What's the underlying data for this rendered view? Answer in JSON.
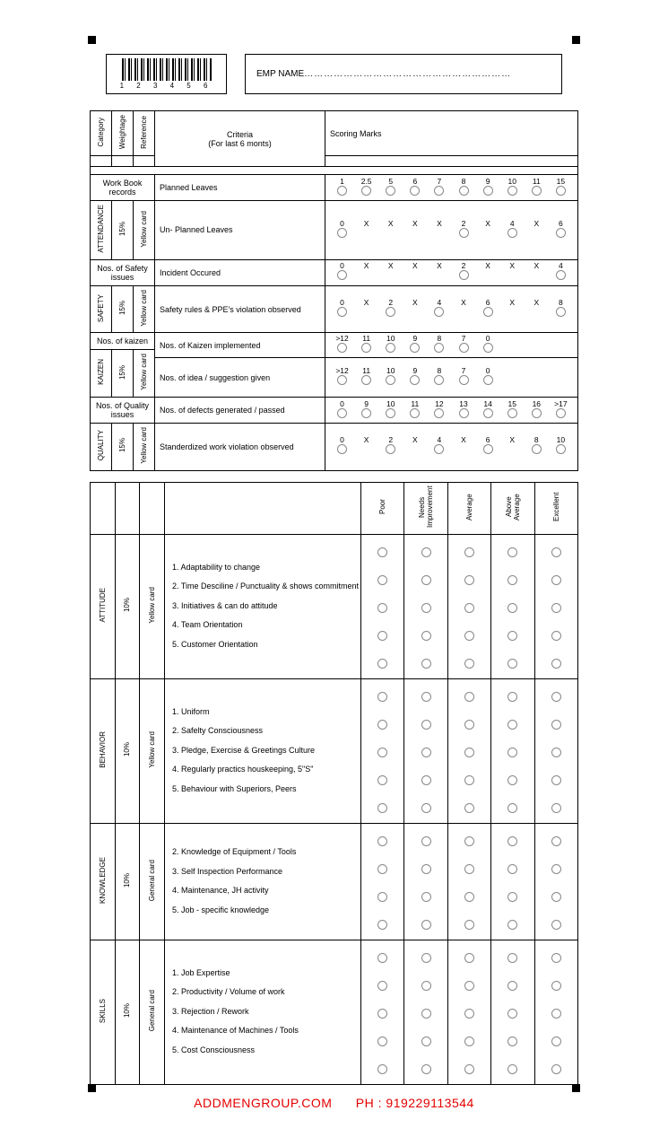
{
  "barcode_number": "1 2 3 4 5 6",
  "emp_name_label": "EMP NAME",
  "header": {
    "col_category": "Category",
    "col_weightage": "Weightage",
    "col_reference": "Reference",
    "col_criteria_line1": "Criteria",
    "col_criteria_line2": "(For last 6 monts)",
    "col_scoring": "Scoring Marks"
  },
  "sections": [
    {
      "category": "ATTENDANCE",
      "weightage": "15%",
      "reference": "Yellow card",
      "group_label": "Work Book records",
      "rows": [
        {
          "criteria": "Planned Leaves",
          "labels": [
            "1",
            "2.5",
            "5",
            "6",
            "7",
            "8",
            "9",
            "10",
            "11",
            "15"
          ],
          "bubbles": [
            1,
            1,
            1,
            1,
            1,
            1,
            1,
            1,
            1,
            1
          ]
        },
        {
          "criteria": "Un- Planned Leaves",
          "labels": [
            "0",
            "X",
            "X",
            "X",
            "X",
            "2",
            "X",
            "4",
            "X",
            "6"
          ],
          "bubbles": [
            1,
            0,
            0,
            0,
            0,
            1,
            0,
            1,
            0,
            1
          ]
        }
      ]
    },
    {
      "category": "SAFETY",
      "weightage": "15%",
      "reference": "Yellow card",
      "group_label": "Nos. of Safety issues",
      "rows": [
        {
          "criteria": "Incident Occured",
          "labels": [
            "0",
            "X",
            "X",
            "X",
            "X",
            "2",
            "X",
            "X",
            "X",
            "4"
          ],
          "bubbles": [
            1,
            0,
            0,
            0,
            0,
            1,
            0,
            0,
            0,
            1
          ]
        },
        {
          "criteria": "Safety rules & PPE's violation observed",
          "labels": [
            "0",
            "X",
            "2",
            "X",
            "4",
            "X",
            "6",
            "X",
            "X",
            "8"
          ],
          "bubbles": [
            1,
            0,
            1,
            0,
            1,
            0,
            1,
            0,
            0,
            1
          ]
        }
      ]
    },
    {
      "category": "KAIZEN",
      "weightage": "15%",
      "reference": "Yellow card",
      "group_label": "Nos. of kaizen",
      "rows": [
        {
          "criteria": "Nos. of Kaizen implemented",
          "labels": [
            ">12",
            "11",
            "10",
            "9",
            "8",
            "7",
            "0",
            "",
            "",
            ""
          ],
          "bubbles": [
            1,
            1,
            1,
            1,
            1,
            1,
            1,
            0,
            0,
            0
          ]
        },
        {
          "criteria": "Nos. of idea / suggestion given",
          "labels": [
            ">12",
            "11",
            "10",
            "9",
            "8",
            "7",
            "0",
            "",
            "",
            ""
          ],
          "bubbles": [
            1,
            1,
            1,
            1,
            1,
            1,
            1,
            0,
            0,
            0
          ]
        }
      ]
    },
    {
      "category": "QUALITY",
      "weightage": "15%",
      "reference": "Yellow card",
      "group_label": "Nos. of Quality issues",
      "rows": [
        {
          "criteria": "Nos. of defects generated / passed",
          "labels": [
            "0",
            "9",
            "10",
            "11",
            "12",
            "13",
            "14",
            "15",
            "16",
            ">17"
          ],
          "bubbles": [
            1,
            1,
            1,
            1,
            1,
            1,
            1,
            1,
            1,
            1
          ]
        },
        {
          "criteria": "Standerdized work violation observed",
          "labels": [
            "0",
            "X",
            "2",
            "X",
            "4",
            "X",
            "6",
            "X",
            "8",
            "10"
          ],
          "bubbles": [
            1,
            0,
            1,
            0,
            1,
            0,
            1,
            0,
            1,
            1
          ]
        }
      ]
    }
  ],
  "rating_labels": [
    "Poor",
    "Needs\nImprovement",
    "Average",
    "Above\nAverage",
    "Excellent"
  ],
  "rating_sections": [
    {
      "category": "ATTITUDE",
      "weightage": "10%",
      "reference": "Yellow card",
      "items": [
        "1. Adaptability to change",
        "2. Time Desciline / Punctuality & shows commitment",
        "3. Initiatives & can do attitude",
        "4. Team Orientation",
        "5. Customer Orientation"
      ]
    },
    {
      "category": "BEHAVIOR",
      "weightage": "10%",
      "reference": "Yellow card",
      "items": [
        "1. Uniform",
        "2. Safelty Consciousness",
        "3. Pledge, Exercise & Greetings Culture",
        "4. Regularly practics houskeeping, 5\"S\"",
        "5. Behaviour with Superiors, Peers"
      ]
    },
    {
      "category": "KNOWLEDGE",
      "weightage": "10%",
      "reference": "General card",
      "items": [
        "2. Knowledge of Equipment / Tools",
        "3. Self Inspection Performance",
        "4. Maintenance, JH activity",
        "5. Job - specific knowledge"
      ]
    },
    {
      "category": "SKILLS",
      "weightage": "10%",
      "reference": "General card",
      "items": [
        "1. Job Expertise",
        "2. Productivity / Volume of work",
        "3. Rejection / Rework",
        "4. Maintenance of Machines / Tools",
        "5. Cost Consciousness"
      ]
    }
  ],
  "footer_site": "ADDMENGROUP.COM",
  "footer_phone_label": "PH :",
  "footer_phone": "919229113544"
}
